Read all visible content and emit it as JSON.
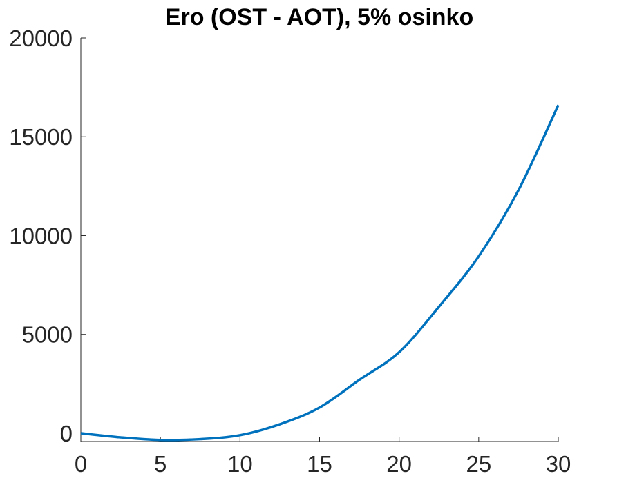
{
  "chart_data": {
    "type": "line",
    "title": "Ero (OST - AOT), 5% osinko",
    "xlabel": "",
    "ylabel": "",
    "xlim": [
      0,
      30
    ],
    "ylim": [
      -420,
      20000
    ],
    "x_ticks": [
      0,
      5,
      10,
      15,
      20,
      25,
      30
    ],
    "y_ticks": [
      0,
      5000,
      10000,
      15000,
      20000
    ],
    "grid": false,
    "legend_position": "none",
    "box": false,
    "tick_direction": "in",
    "axis_color": "#262626",
    "background_color": "#ffffff",
    "series": [
      {
        "color": "#0072BD",
        "line_width": 3.5,
        "x": [
          0,
          2.5,
          5,
          7.5,
          10,
          12.5,
          15,
          17.5,
          20,
          22.5,
          25,
          27.5,
          30
        ],
        "y": [
          0,
          -210,
          -340,
          -300,
          -100,
          450,
          1300,
          2700,
          4100,
          6400,
          8950,
          12300,
          16600
        ]
      }
    ]
  }
}
